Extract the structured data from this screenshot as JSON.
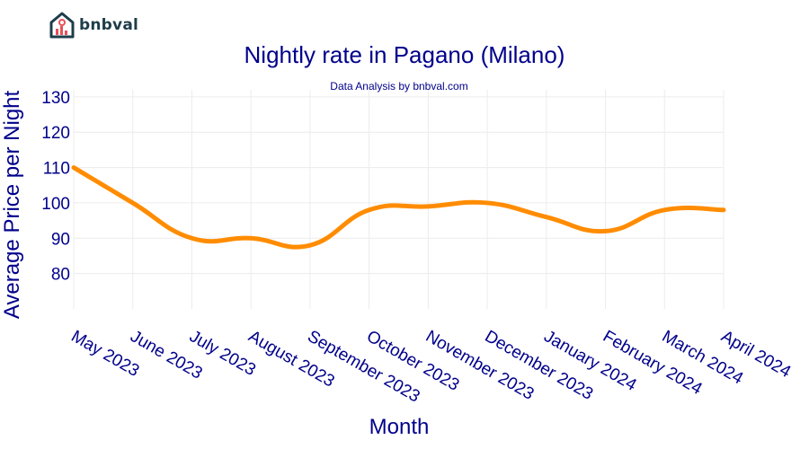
{
  "brand": {
    "name": "bnbval"
  },
  "chart_data": {
    "type": "line",
    "title": "Nightly rate in Pagano (Milano)",
    "subtitle": "Data Analysis by bnbval.com",
    "xlabel": "Month",
    "ylabel": "Average Price per Night",
    "categories": [
      "May 2023",
      "June 2023",
      "July 2023",
      "August 2023",
      "September 2023",
      "October 2023",
      "November 2023",
      "December 2023",
      "January 2024",
      "February 2024",
      "March 2024",
      "April 2024"
    ],
    "series": [
      {
        "values": [
          110,
          100,
          90,
          90,
          88,
          98,
          99,
          100,
          96,
          92,
          98,
          98
        ],
        "color": "#ff8c00"
      }
    ],
    "yticks": [
      80,
      90,
      100,
      110,
      120,
      130
    ],
    "ylim": [
      70,
      132
    ],
    "grid": true,
    "legend": "none"
  }
}
